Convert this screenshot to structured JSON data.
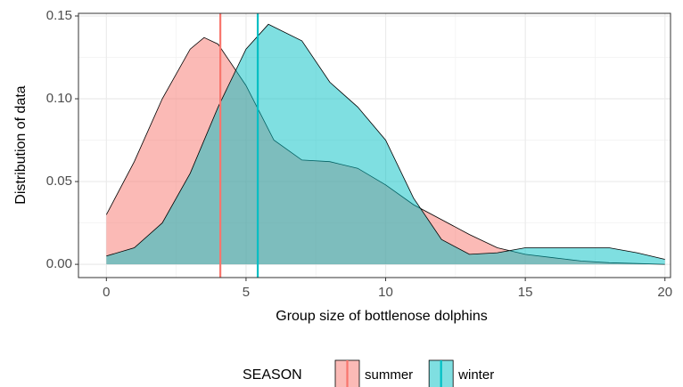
{
  "chart_data": {
    "type": "density",
    "x_label": "Group size of bottlenose dolphins",
    "y_label": "Distribution of data",
    "legend_title": "SEASON",
    "legend_position": "bottom",
    "grid": true,
    "xlim": [
      -1,
      20.2
    ],
    "ylim": [
      -0.008,
      0.1516
    ],
    "xticks": [
      0,
      5,
      10,
      15,
      20
    ],
    "yticks": [
      {
        "value": 0,
        "label": "0.00"
      },
      {
        "value": 0.05,
        "label": "0.05"
      },
      {
        "value": 0.1,
        "label": "0.10"
      },
      {
        "value": 0.15,
        "label": "0.15"
      }
    ],
    "series": [
      {
        "name": "summer",
        "color": "#F8766D",
        "mean": 4.08,
        "x": [
          0,
          1,
          2,
          3,
          3.5,
          4,
          5,
          6,
          7,
          8,
          9,
          10,
          11,
          12,
          13,
          14,
          15,
          16,
          17,
          18,
          19,
          20
        ],
        "values": [
          0.03,
          0.062,
          0.1,
          0.13,
          0.137,
          0.133,
          0.108,
          0.075,
          0.063,
          0.062,
          0.058,
          0.048,
          0.036,
          0.027,
          0.018,
          0.01,
          0.006,
          0.004,
          0.002,
          0.001,
          0.0005,
          0
        ]
      },
      {
        "name": "winter",
        "color": "#00BFC4",
        "mean": 5.42,
        "x": [
          0,
          1,
          2,
          3,
          4,
          5,
          5.8,
          7,
          8,
          9,
          10,
          11,
          12,
          13,
          14,
          15,
          16,
          17,
          18,
          19,
          20
        ],
        "values": [
          0.005,
          0.01,
          0.025,
          0.055,
          0.095,
          0.13,
          0.145,
          0.135,
          0.11,
          0.095,
          0.075,
          0.04,
          0.015,
          0.006,
          0.007,
          0.01,
          0.01,
          0.01,
          0.01,
          0.007,
          0.003
        ]
      }
    ]
  }
}
